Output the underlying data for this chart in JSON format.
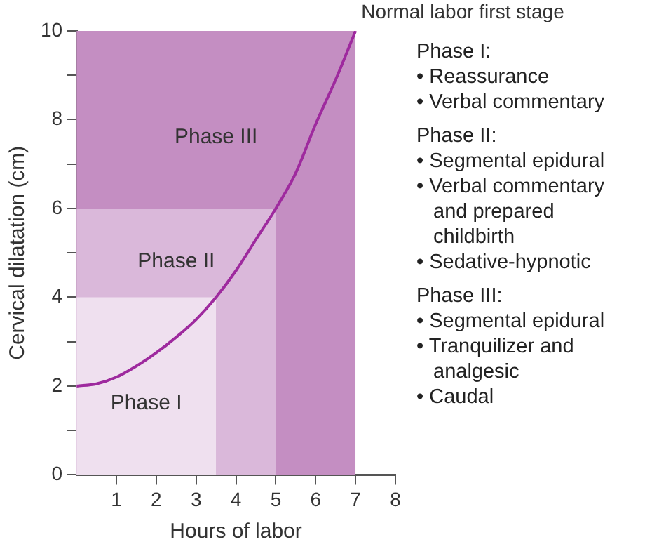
{
  "chart_data": {
    "type": "line",
    "title": "Normal labor first stage",
    "xlabel": "Hours of labor",
    "ylabel": "Cervical dilatation (cm)",
    "xlim": [
      0,
      8
    ],
    "xticks": [
      1,
      2,
      3,
      4,
      5,
      6,
      7,
      8
    ],
    "ylim": [
      0,
      10
    ],
    "yticks": [
      0,
      {
        "value": 1,
        "label": null
      },
      2,
      {
        "value": 3,
        "label": null
      },
      4,
      {
        "value": 5,
        "label": null
      },
      6,
      {
        "value": 7,
        "label": null
      },
      8,
      {
        "value": 9,
        "label": null
      },
      10
    ],
    "grid": false,
    "legend": false,
    "series": [
      {
        "type": "area",
        "name": "Phase III",
        "color": "#c48ec2",
        "x": [
          0,
          7
        ],
        "values": [
          10,
          10
        ]
      },
      {
        "type": "area",
        "name": "Phase II",
        "color": "#dab8da",
        "x": [
          0,
          5
        ],
        "values": [
          6,
          6
        ]
      },
      {
        "type": "area",
        "name": "Phase I",
        "color": "#efe0ef",
        "x": [
          0,
          3.5
        ],
        "values": [
          4,
          4
        ]
      },
      {
        "type": "line",
        "color": "#9e2a9e",
        "x": [
          0,
          0.5,
          1,
          1.5,
          2,
          2.5,
          3,
          3.5,
          4,
          4.5,
          5,
          5.5,
          6,
          6.5,
          7
        ],
        "values": [
          2,
          2.05,
          2.2,
          2.45,
          2.75,
          3.1,
          3.5,
          4,
          4.6,
          5.3,
          6,
          6.8,
          7.9,
          8.9,
          10
        ]
      }
    ],
    "annotations": [
      "Phase I:",
      "• Reassurance",
      "• Verbal commentary",
      "Phase II:",
      "• Segmental epidural",
      "• Verbal commentary and prepared childbirth",
      "• Sedative-hypnotic",
      "Phase III:",
      "• Segmental epidural",
      "• Tranquilizer and analgesic",
      "• Caudal"
    ]
  }
}
